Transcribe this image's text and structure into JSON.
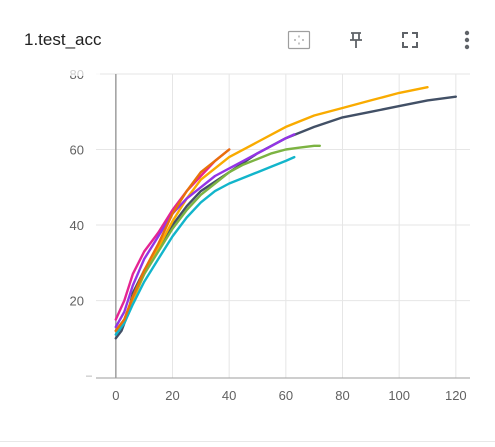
{
  "card": {
    "title": "1.test_acc",
    "toolbar": [
      {
        "name": "fit-domain-icon"
      },
      {
        "name": "pin-icon"
      },
      {
        "name": "fullscreen-icon"
      },
      {
        "name": "more-vert-icon"
      }
    ]
  },
  "colors": {
    "grid": "#e6e6e6",
    "axis": "#9e9e9e",
    "toolbar_icon": "#5f6368"
  },
  "chart_data": {
    "type": "line",
    "title": "1.test_acc",
    "xlabel": "",
    "ylabel": "",
    "xlim": [
      -7,
      125
    ],
    "ylim": [
      -0.5,
      80
    ],
    "x_ticks": [
      0,
      20,
      40,
      60,
      80,
      100,
      120
    ],
    "y_ticks": [
      20,
      40,
      60,
      80
    ],
    "grid": true,
    "legend": "none",
    "series": [
      {
        "color": "#425066",
        "x": [
          0,
          2,
          4,
          6,
          10,
          15,
          20,
          25,
          30,
          40,
          50,
          60,
          70,
          80,
          90,
          100,
          110,
          120
        ],
        "y": [
          10,
          12,
          16,
          22,
          28,
          34,
          40,
          45,
          49,
          54,
          59,
          63,
          66,
          68.5,
          70,
          71.5,
          73,
          74
        ]
      },
      {
        "color": "#f9ab00",
        "x": [
          0,
          3,
          6,
          10,
          15,
          20,
          25,
          30,
          40,
          50,
          60,
          70,
          80,
          90,
          100,
          110
        ],
        "y": [
          12,
          14,
          20,
          27,
          34,
          41,
          47,
          52,
          58,
          62,
          66,
          69,
          71,
          73,
          75,
          76.5
        ]
      },
      {
        "color": "#e52592",
        "x": [
          0,
          3,
          6,
          10,
          15,
          20,
          25,
          30,
          35,
          40
        ],
        "y": [
          15,
          20,
          27,
          33,
          38,
          44,
          49,
          53,
          57,
          60
        ]
      },
      {
        "color": "#9334e6",
        "x": [
          0,
          3,
          6,
          10,
          15,
          20,
          25,
          30,
          35,
          40,
          45,
          50,
          55,
          60,
          63
        ],
        "y": [
          13,
          17,
          24,
          31,
          37,
          43,
          47,
          50,
          53,
          55,
          57,
          59,
          61,
          63,
          64
        ]
      },
      {
        "color": "#7cb342",
        "x": [
          0,
          3,
          6,
          10,
          15,
          20,
          25,
          30,
          35,
          40,
          45,
          50,
          55,
          60,
          65,
          70,
          72
        ],
        "y": [
          12,
          15,
          21,
          27,
          33,
          39,
          44,
          48,
          51,
          54,
          56,
          57.5,
          59,
          60,
          60.5,
          61,
          61
        ]
      },
      {
        "color": "#12b5cb",
        "x": [
          0,
          3,
          6,
          10,
          15,
          20,
          25,
          30,
          35,
          40,
          45,
          50,
          55,
          60,
          63
        ],
        "y": [
          11,
          14,
          19,
          25,
          31,
          37,
          42,
          46,
          49,
          51,
          52.5,
          54,
          55.5,
          57,
          58
        ]
      },
      {
        "color": "#e8710a",
        "x": [
          0,
          3,
          6,
          10,
          15,
          20,
          25,
          30,
          35,
          40
        ],
        "y": [
          12,
          15,
          21,
          28,
          35,
          43,
          49,
          54,
          57,
          60
        ]
      }
    ]
  }
}
